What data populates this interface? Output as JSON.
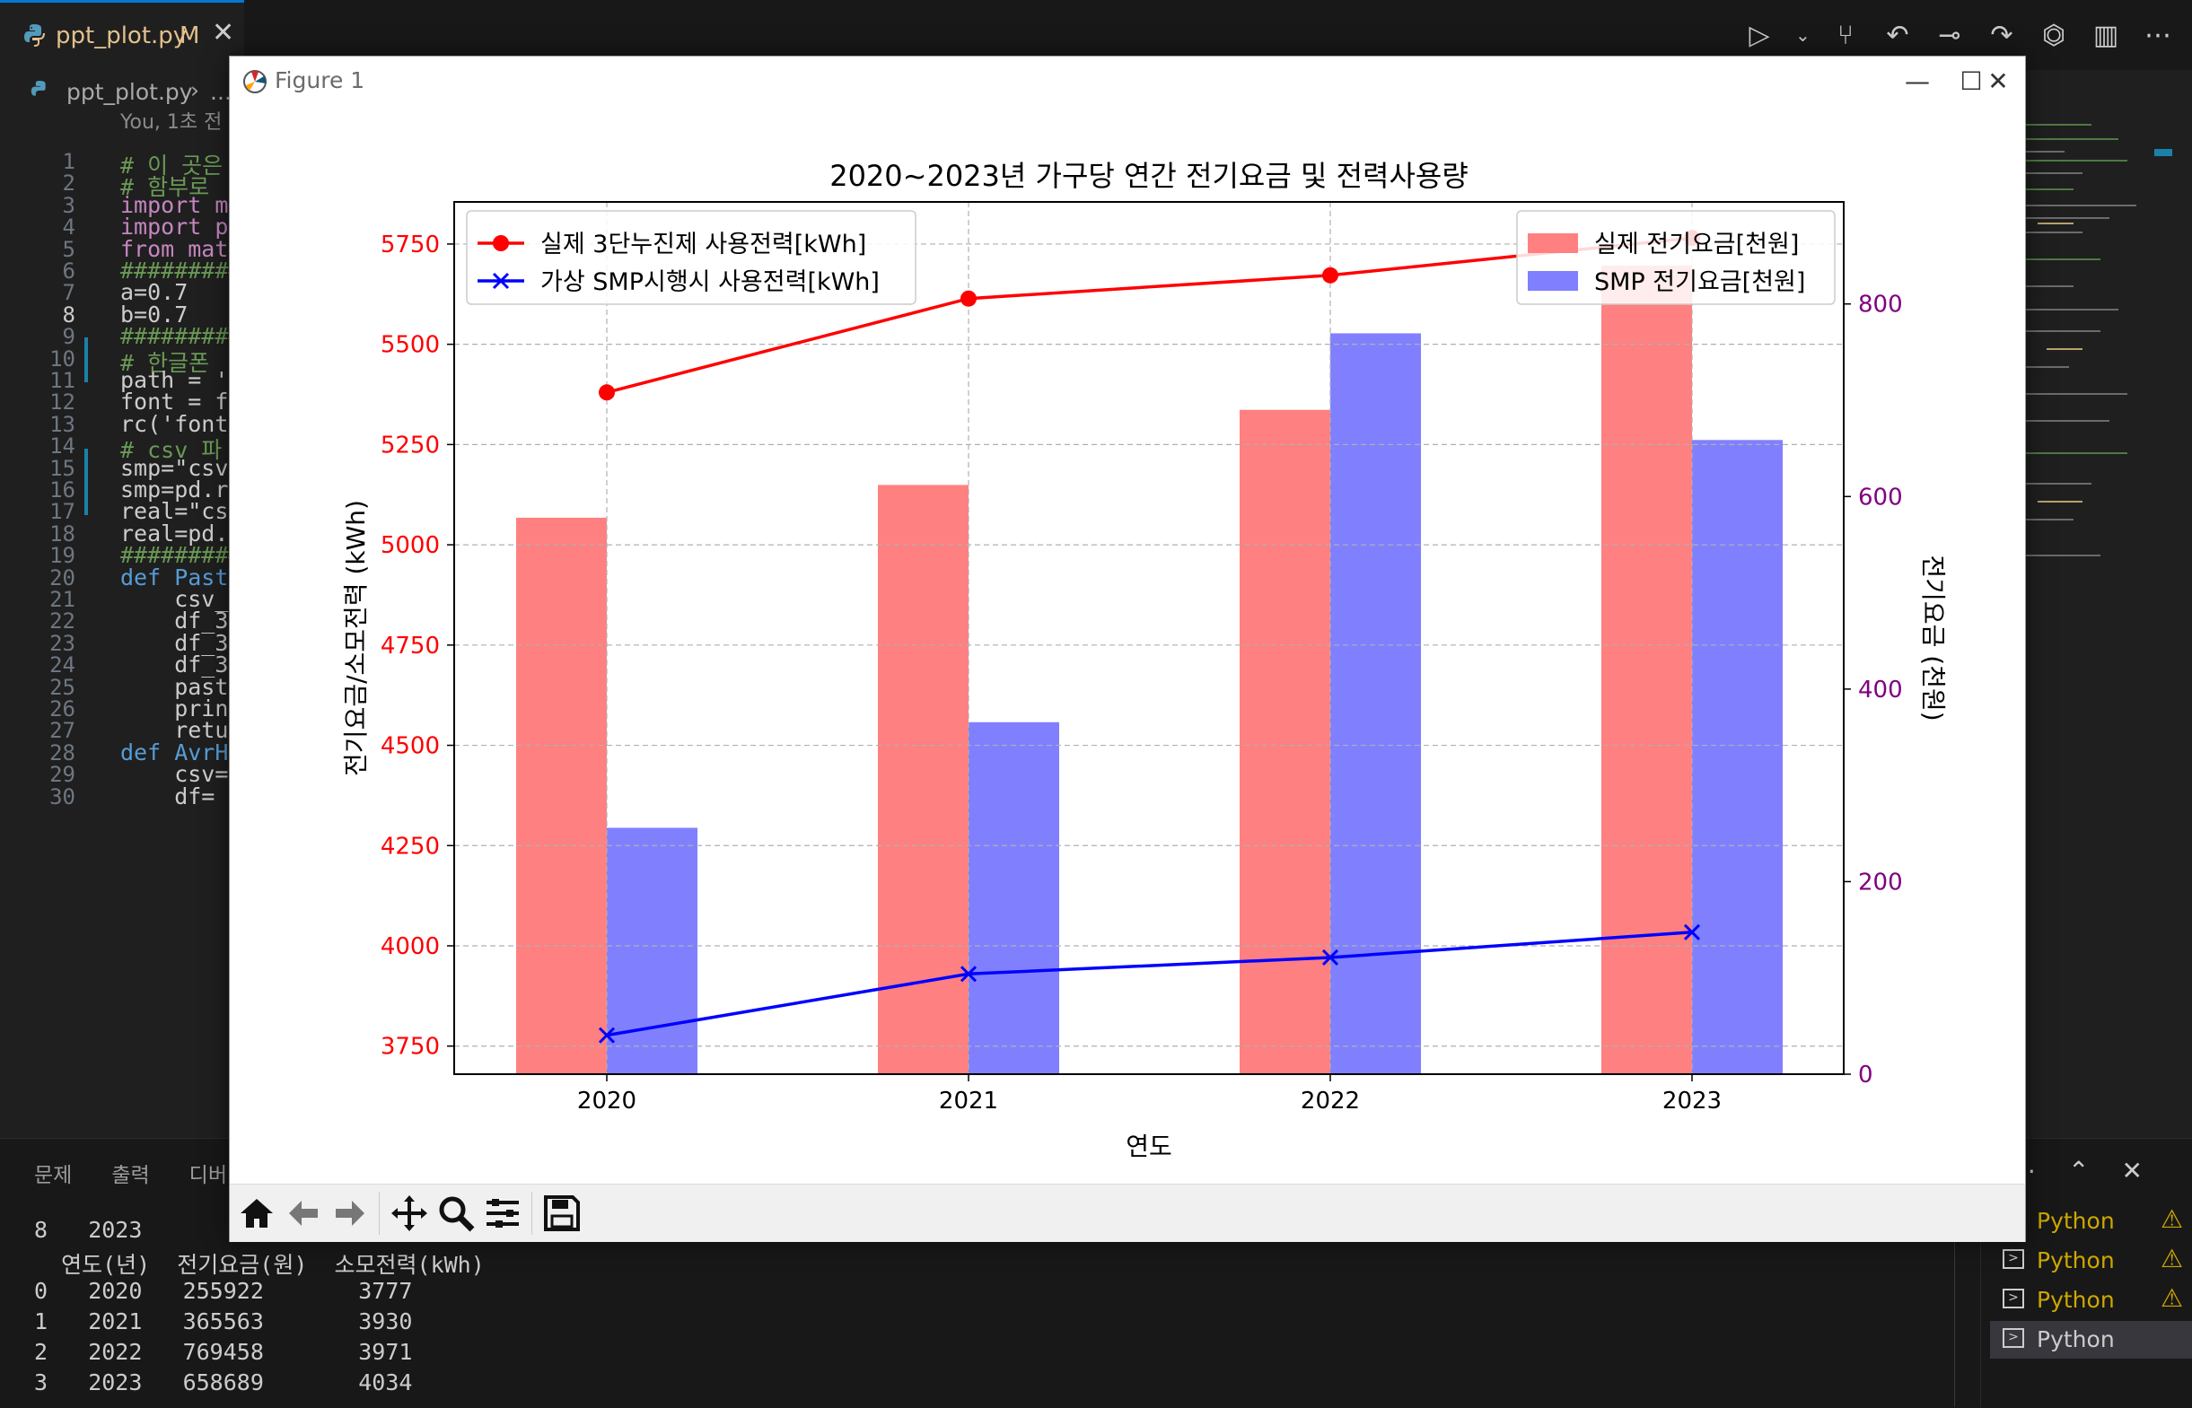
{
  "editor_tab": {
    "filename": "ppt_plot.py",
    "modified": "M"
  },
  "breadcrumb": {
    "file": "ppt_plot.py",
    "rest": "..."
  },
  "blame": "You, 1초 전",
  "code_lines": [
    {
      "no": "1",
      "text": "# 이 곳은"
    },
    {
      "no": "2",
      "text": "# 함부로"
    },
    {
      "no": "3",
      "text": "import m"
    },
    {
      "no": "4",
      "text": "import p"
    },
    {
      "no": "5",
      "text": "from mat"
    },
    {
      "no": "6",
      "text": "#########"
    },
    {
      "no": "7",
      "text": "a=0.7"
    },
    {
      "no": "8",
      "text": "b=0.7"
    },
    {
      "no": "9",
      "text": "#########"
    },
    {
      "no": "10",
      "text": "# 한글폰"
    },
    {
      "no": "11",
      "text": "path = '"
    },
    {
      "no": "12",
      "text": "font = f"
    },
    {
      "no": "13",
      "text": "rc('font"
    },
    {
      "no": "14",
      "text": "# csv 파"
    },
    {
      "no": "15",
      "text": "smp=\"csv"
    },
    {
      "no": "16",
      "text": "smp=pd.r"
    },
    {
      "no": "17",
      "text": "real=\"cs"
    },
    {
      "no": "18",
      "text": "real=pd."
    },
    {
      "no": "19",
      "text": "#########"
    },
    {
      "no": "20",
      "text": "def Past"
    },
    {
      "no": "21",
      "text": "    csv_"
    },
    {
      "no": "22",
      "text": "    df_3"
    },
    {
      "no": "23",
      "text": "    df_3"
    },
    {
      "no": "24",
      "text": "    df_3"
    },
    {
      "no": "25",
      "text": "    past"
    },
    {
      "no": "26",
      "text": "    prin"
    },
    {
      "no": "27",
      "text": "    retu"
    },
    {
      "no": "28",
      "text": "def AvrH"
    },
    {
      "no": "29",
      "text": "    csv="
    },
    {
      "no": "30",
      "text": "    df="
    }
  ],
  "panel": {
    "tabs": [
      "문제",
      "출력",
      "디버"
    ],
    "terminal_lines": [
      "8   2023",
      "  연도(년)  전기요금(원)  소모전력(kWh)",
      "0   2020   255922       3777",
      "1   2021   365563       3930",
      "2   2022   769458       3971",
      "3   2023   658689       4034"
    ],
    "terminals": [
      {
        "label": "Python",
        "warn": true
      },
      {
        "label": "Python",
        "warn": true
      },
      {
        "label": "Python",
        "warn": true
      },
      {
        "label": "Python",
        "warn": false
      }
    ]
  },
  "figure_window": {
    "title": "Figure 1"
  },
  "colors": {
    "real": "#ff0000",
    "smp": "#0000ff",
    "real_bar": "#ff8080",
    "smp_bar": "#8080ff",
    "right_axis": "#800080"
  },
  "chart_data": {
    "type": "bar",
    "title": "2020~2023년 가구당 연간 전기요금 및 전력사용량",
    "xlabel": "연도",
    "ylabel": "전기요금/소모전력 (kWh)",
    "ylabel_right": "전기요금 (천원)",
    "categories": [
      "2020",
      "2021",
      "2022",
      "2023"
    ],
    "line_series": [
      {
        "name": "실제 3단누진제 사용전력[kWh]",
        "values": [
          5380,
          5614,
          5672,
          5765
        ],
        "color": "#ff0000",
        "marker": "o"
      },
      {
        "name": "가상 SMP시행시 사용전력[kWh]",
        "values": [
          3777,
          3930,
          3971,
          4034
        ],
        "color": "#0000ff",
        "marker": "x"
      }
    ],
    "bar_series": [
      {
        "name": "실제 전기요금[천원]",
        "values": [
          578,
          612,
          690,
          840
        ],
        "color": "#ff8080"
      },
      {
        "name": "SMP 전기요금[천원]",
        "values": [
          255.9,
          365.6,
          769.5,
          658.7
        ],
        "color": "#8080ff"
      }
    ],
    "ylim_left": [
      3680,
      5855
    ],
    "ylim_right": [
      0,
      906
    ],
    "yticks_left": [
      "3750",
      "4000",
      "4250",
      "4500",
      "4750",
      "5000",
      "5250",
      "5500",
      "5750"
    ],
    "yticks_right": [
      "0",
      "200",
      "400",
      "600",
      "800"
    ],
    "grid": true,
    "legend_left": "top-left",
    "legend_right": "top-right"
  }
}
